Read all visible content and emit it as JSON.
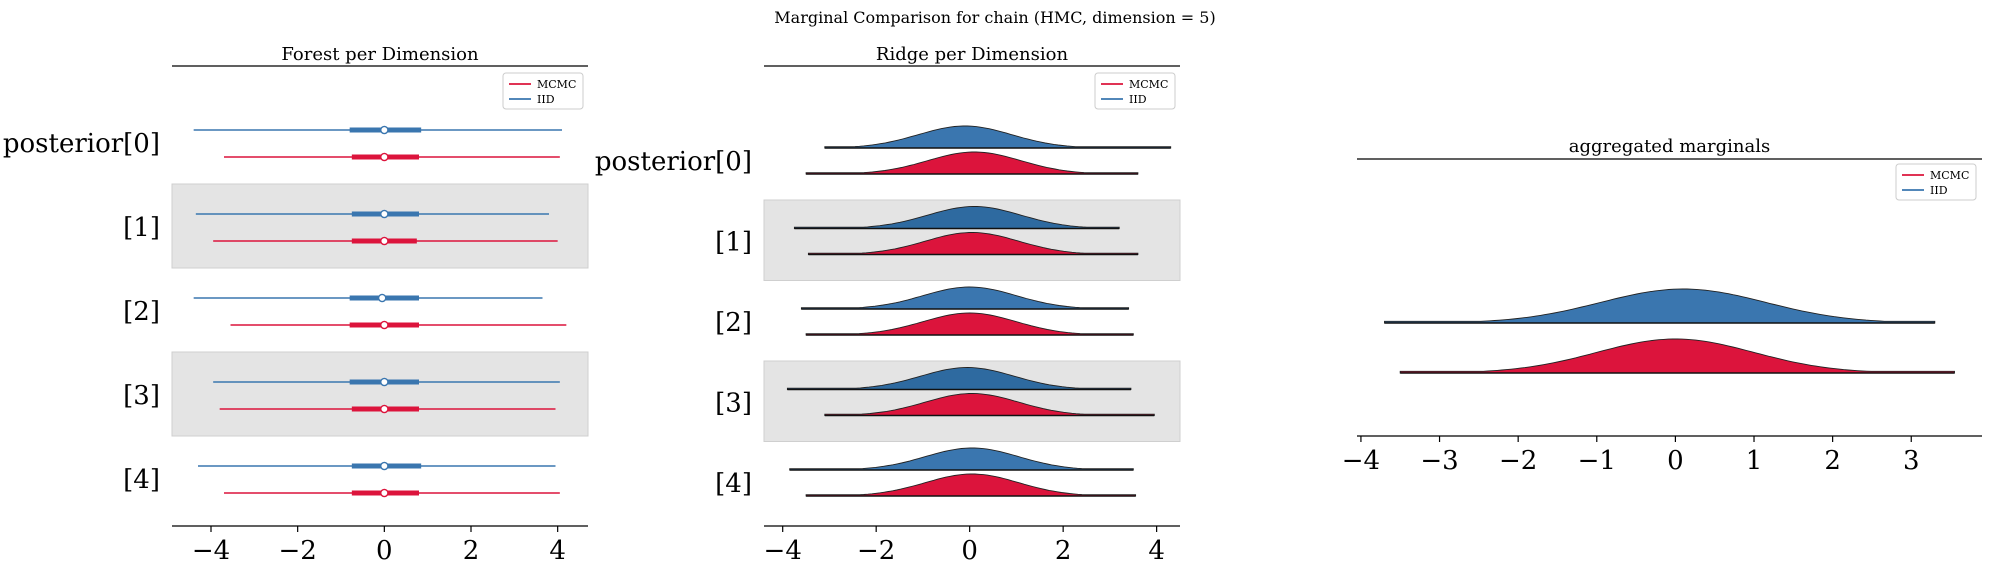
{
  "suptitle": "Marginal Comparison for chain (HMC, dimension = 5)",
  "colors": {
    "mcmc": "#dc143c",
    "iid": "#3a76af",
    "iid_dark": "#2e6aa0",
    "band": "#e4e4e4",
    "axis": "#000000"
  },
  "chart_data": [
    {
      "type": "forest",
      "title": "Forest per Dimension",
      "xlim": [
        -4.9,
        4.7
      ],
      "xticks": [
        -4,
        -2,
        0,
        2,
        4
      ],
      "xtick_labels": [
        "−4",
        "−2",
        "0",
        "2",
        "4"
      ],
      "ylabels": [
        "posterior[0]",
        "[1]",
        "[2]",
        "[3]",
        "[4]"
      ],
      "shaded_rows": [
        1,
        3
      ],
      "legend": [
        {
          "name": "MCMC",
          "color": "#dc143c"
        },
        {
          "name": "IID",
          "color": "#3a76af"
        }
      ],
      "series": [
        {
          "name": "IID",
          "color": "#3a76af",
          "rows": [
            {
              "min": -4.4,
              "max": 4.1,
              "q_low": -0.8,
              "q_high": 0.85,
              "center": 0.0
            },
            {
              "min": -4.35,
              "max": 3.8,
              "q_low": -0.75,
              "q_high": 0.8,
              "center": 0.0
            },
            {
              "min": -4.4,
              "max": 3.65,
              "q_low": -0.8,
              "q_high": 0.8,
              "center": -0.05
            },
            {
              "min": -3.95,
              "max": 4.05,
              "q_low": -0.8,
              "q_high": 0.8,
              "center": 0.0
            },
            {
              "min": -4.3,
              "max": 3.95,
              "q_low": -0.75,
              "q_high": 0.85,
              "center": 0.0
            }
          ]
        },
        {
          "name": "MCMC",
          "color": "#dc143c",
          "rows": [
            {
              "min": -3.7,
              "max": 4.05,
              "q_low": -0.75,
              "q_high": 0.8,
              "center": 0.0
            },
            {
              "min": -3.95,
              "max": 4.0,
              "q_low": -0.75,
              "q_high": 0.75,
              "center": 0.0
            },
            {
              "min": -3.55,
              "max": 4.2,
              "q_low": -0.8,
              "q_high": 0.8,
              "center": 0.0
            },
            {
              "min": -3.8,
              "max": 3.95,
              "q_low": -0.75,
              "q_high": 0.8,
              "center": 0.0
            },
            {
              "min": -3.7,
              "max": 4.05,
              "q_low": -0.75,
              "q_high": 0.8,
              "center": 0.0
            }
          ]
        }
      ]
    },
    {
      "type": "ridge",
      "title": "Ridge per Dimension",
      "xlim": [
        -4.4,
        4.5
      ],
      "xticks": [
        -4,
        -2,
        0,
        2,
        4
      ],
      "xtick_labels": [
        "−4",
        "−2",
        "0",
        "2",
        "4"
      ],
      "ylabels": [
        "posterior[0]",
        "[1]",
        "[2]",
        "[3]",
        "[4]"
      ],
      "shaded_rows": [
        1,
        3
      ],
      "legend": [
        {
          "name": "MCMC",
          "color": "#dc143c"
        },
        {
          "name": "IID",
          "color": "#3a76af"
        }
      ],
      "series": [
        {
          "name": "IID",
          "color": "#3a76af",
          "rows": [
            {
              "min": -3.1,
              "max": 4.3,
              "center": -0.1,
              "sd": 1.0
            },
            {
              "min": -3.75,
              "max": 3.2,
              "center": 0.1,
              "sd": 1.0
            },
            {
              "min": -3.6,
              "max": 3.4,
              "center": 0.0,
              "sd": 1.0
            },
            {
              "min": -3.9,
              "max": 3.45,
              "center": -0.05,
              "sd": 1.0
            },
            {
              "min": -3.85,
              "max": 3.5,
              "center": 0.05,
              "sd": 1.0
            }
          ]
        },
        {
          "name": "MCMC",
          "color": "#dc143c",
          "rows": [
            {
              "min": -3.5,
              "max": 3.6,
              "center": 0.1,
              "sd": 1.0
            },
            {
              "min": -3.45,
              "max": 3.6,
              "center": 0.05,
              "sd": 1.0
            },
            {
              "min": -3.5,
              "max": 3.5,
              "center": 0.0,
              "sd": 1.0
            },
            {
              "min": -3.1,
              "max": 3.95,
              "center": 0.05,
              "sd": 1.0
            },
            {
              "min": -3.5,
              "max": 3.55,
              "center": 0.05,
              "sd": 1.0
            }
          ]
        }
      ]
    },
    {
      "type": "ridge",
      "title": "aggregated marginals",
      "xlim": [
        -4.05,
        3.9
      ],
      "xticks": [
        -4,
        -3,
        -2,
        -1,
        0,
        1,
        2,
        3
      ],
      "xtick_labels": [
        "−4",
        "−3",
        "−2",
        "−1",
        "0",
        "1",
        "2",
        "3"
      ],
      "legend": [
        {
          "name": "MCMC",
          "color": "#dc143c"
        },
        {
          "name": "IID",
          "color": "#3a76af"
        }
      ],
      "series": [
        {
          "name": "IID",
          "color": "#3a76af",
          "min": -3.7,
          "max": 3.3,
          "center": 0.1,
          "sd": 1.05
        },
        {
          "name": "MCMC",
          "color": "#dc143c",
          "min": -3.5,
          "max": 3.55,
          "center": 0.0,
          "sd": 1.0
        }
      ]
    }
  ]
}
